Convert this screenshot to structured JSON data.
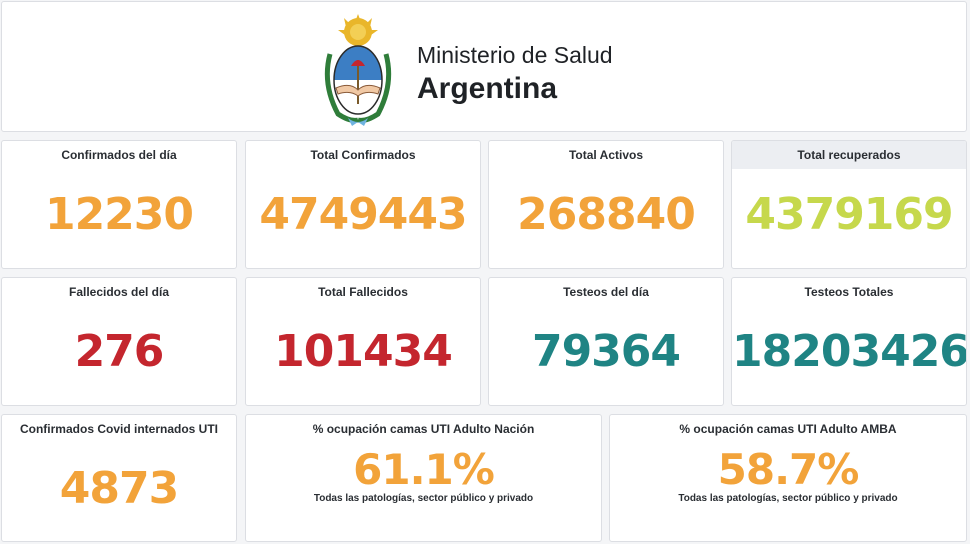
{
  "header": {
    "ministry": "Ministerio de Salud",
    "country": "Argentina",
    "logo_icon": "argentina-coat-of-arms-icon"
  },
  "colors": {
    "orange": "#f2a33a",
    "lime": "#c6d84c",
    "red": "#c4262e",
    "teal": "#1f8484"
  },
  "row1": [
    {
      "title": "Confirmados del día",
      "value": "12230"
    },
    {
      "title": "Total Confirmados",
      "value": "4749443"
    },
    {
      "title": "Total Activos",
      "value": "268840"
    },
    {
      "title": "Total recuperados",
      "value": "4379169"
    }
  ],
  "row2": [
    {
      "title": "Fallecidos del día",
      "value": "276"
    },
    {
      "title": "Total Fallecidos",
      "value": "101434"
    },
    {
      "title": "Testeos del día",
      "value": "79364"
    },
    {
      "title": "Testeos Totales",
      "value": "18203426"
    }
  ],
  "row3": {
    "uti": {
      "title": "Confirmados Covid internados UTI",
      "value": "4873"
    },
    "nacion": {
      "title": "% ocupación camas UTI Adulto Nación",
      "value": "61.1%",
      "subtitle": "Todas las patologías, sector público y privado"
    },
    "amba": {
      "title": "% ocupación camas UTI Adulto AMBA",
      "value": "58.7%",
      "subtitle": "Todas las patologías, sector público y privado"
    }
  }
}
